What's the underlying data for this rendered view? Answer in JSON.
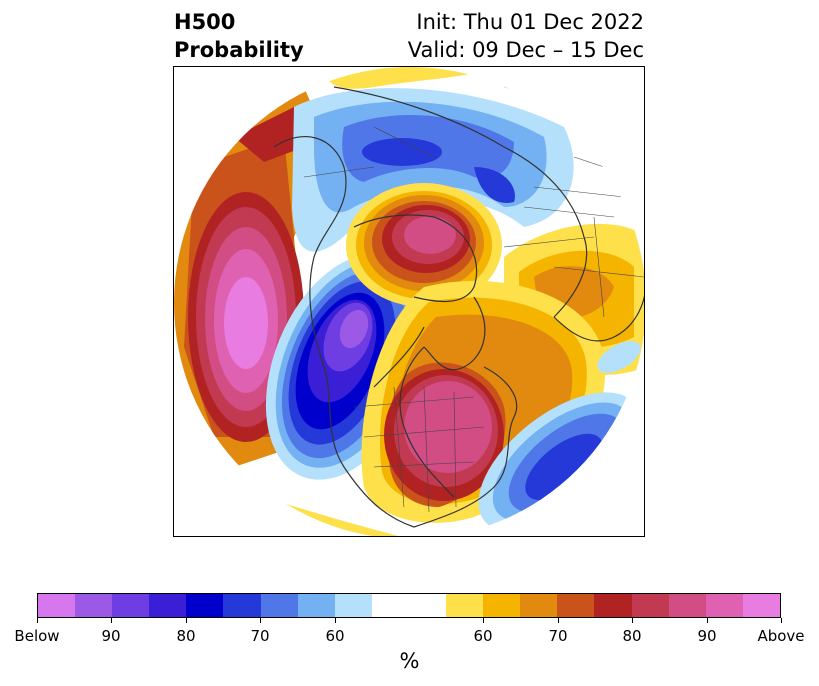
{
  "header": {
    "title_line1": "H500",
    "title_line2": "Probability",
    "init_text": "Init: Thu 01 Dec 2022",
    "valid_text": "Valid: 09 Dec – 15 Dec"
  },
  "map": {
    "projection": "north polar stereographic",
    "anomalies": [
      {
        "region": "North Pacific",
        "sign": "above",
        "peak_level": "Above"
      },
      {
        "region": "Western North America / Alaska",
        "sign": "below",
        "peak_level": "Below"
      },
      {
        "region": "Central / Eastern North America",
        "sign": "above",
        "peak_level": "90"
      },
      {
        "region": "Greenland / North Atlantic",
        "sign": "above",
        "peak_level": "90"
      },
      {
        "region": "Western Atlantic",
        "sign": "below",
        "peak_level": "80"
      },
      {
        "region": "Siberia",
        "sign": "below",
        "peak_level": "70"
      },
      {
        "region": "Europe",
        "sign": "above",
        "peak_level": "70"
      }
    ]
  },
  "colorbar": {
    "colors": [
      "#d677ee",
      "#9c59e6",
      "#6e3ee2",
      "#3a1fd6",
      "#0000cc",
      "#2538d8",
      "#4f77e8",
      "#74b1f3",
      "#b4e0fb",
      "#ffffff",
      "#ffffff",
      "#fde04a",
      "#f4b400",
      "#e18a0f",
      "#c9531b",
      "#b12323",
      "#c23a52",
      "#d14d83",
      "#df62b2",
      "#e87ce0"
    ],
    "tick_labels": [
      "Below",
      "90",
      "80",
      "70",
      "60",
      "60",
      "70",
      "80",
      "90",
      "Above"
    ],
    "label": "%"
  }
}
